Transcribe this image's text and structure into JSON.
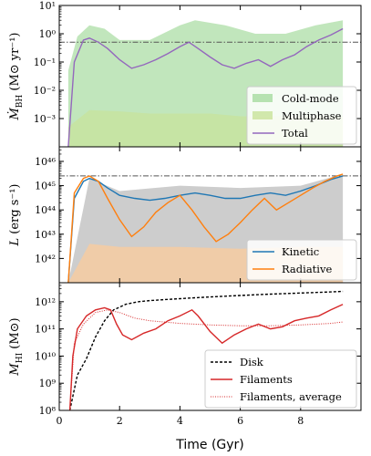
{
  "chart_data": {
    "type": "line",
    "shared_x": {
      "label": "Time (Gyr)",
      "range": [
        0,
        10
      ],
      "ticks": [
        "0",
        "2",
        "4",
        "6",
        "8"
      ]
    },
    "panels": [
      {
        "id": "accretion",
        "ylabel_main": "Ṁ",
        "ylabel_sub": "BH",
        "ylabel_unit": " (M⊙ yr⁻¹)",
        "yscale": "log",
        "ylim_exp": [
          -4,
          1
        ],
        "ytick_labels": [
          "10⁻³",
          "10⁻²",
          "10⁻¹",
          "10⁰",
          "10¹"
        ],
        "ytick_exps": [
          -3,
          -2,
          -1,
          0,
          1
        ],
        "reference_level_exp": -0.3,
        "legend_position": "lower-right",
        "series": [
          {
            "name": "Cold-mode",
            "style": "band",
            "color": "#a6dba0",
            "x": [
              0.3,
              0.6,
              1.0,
              1.5,
              2.0,
              3.0,
              4.0,
              4.5,
              5.5,
              6.5,
              7.5,
              8.5,
              9.4
            ],
            "y": [
              0.05,
              0.8,
              2.0,
              1.5,
              0.6,
              0.6,
              2.0,
              3.0,
              2.0,
              1.0,
              1.0,
              2.0,
              3.0
            ]
          },
          {
            "name": "Multiphase",
            "style": "band",
            "color": "#c8e29a",
            "x": [
              0.3,
              1.0,
              2.0,
              3.0,
              4.0,
              5.0,
              6.0,
              7.0,
              8.0,
              9.4
            ],
            "y": [
              0.0005,
              0.002,
              0.0018,
              0.0015,
              0.0015,
              0.0015,
              0.0012,
              0.0012,
              0.0013,
              0.0012
            ]
          },
          {
            "name": "Total",
            "style": "line",
            "color": "#9467bd",
            "x": [
              0.3,
              0.5,
              0.8,
              1.0,
              1.3,
              1.6,
              2.0,
              2.4,
              2.8,
              3.2,
              3.6,
              4.0,
              4.3,
              4.6,
              5.0,
              5.4,
              5.8,
              6.2,
              6.6,
              7.0,
              7.4,
              7.8,
              8.2,
              8.6,
              9.0,
              9.4
            ],
            "y": [
              0.0001,
              0.1,
              0.6,
              0.7,
              0.5,
              0.3,
              0.12,
              0.06,
              0.08,
              0.12,
              0.2,
              0.35,
              0.5,
              0.3,
              0.15,
              0.08,
              0.06,
              0.09,
              0.12,
              0.07,
              0.12,
              0.18,
              0.35,
              0.6,
              0.9,
              1.5
            ]
          }
        ]
      },
      {
        "id": "luminosity",
        "ylabel_main": "L",
        "ylabel_unit": " (erg s⁻¹)",
        "yscale": "log",
        "ylim_exp": [
          41,
          46.6
        ],
        "ytick_labels": [
          "10⁴²",
          "10⁴³",
          "10⁴⁴",
          "10⁴⁵",
          "10⁴⁶"
        ],
        "ytick_exps": [
          42,
          43,
          44,
          45,
          46
        ],
        "reference_level_exp": 45.4,
        "legend_position": "lower-right",
        "series": [
          {
            "name": "Kinetic",
            "style": "line",
            "color": "#1f77b4",
            "x": [
              0.3,
              0.5,
              0.8,
              1.0,
              1.3,
              1.6,
              2.0,
              2.5,
              3.0,
              3.5,
              4.0,
              4.5,
              5.0,
              5.5,
              6.0,
              6.5,
              7.0,
              7.5,
              8.0,
              8.5,
              9.0,
              9.4
            ],
            "y": [
              1e+41,
              3e+44,
              1.5e+45,
              2e+45,
              1.5e+45,
              8e+44,
              4e+44,
              3e+44,
              2.5e+44,
              3e+44,
              4e+44,
              5e+44,
              4e+44,
              3e+44,
              3e+44,
              4e+44,
              5e+44,
              4e+44,
              6e+44,
              1e+45,
              1.8e+45,
              2.5e+45
            ]
          },
          {
            "name": "Radiative",
            "style": "line",
            "color": "#ff7f0e",
            "x": [
              0.3,
              0.5,
              0.8,
              1.0,
              1.3,
              1.6,
              2.0,
              2.4,
              2.8,
              3.2,
              3.6,
              4.0,
              4.4,
              4.8,
              5.2,
              5.6,
              6.0,
              6.4,
              6.8,
              7.2,
              7.6,
              8.0,
              8.4,
              8.8,
              9.2,
              9.4
            ],
            "y": [
              1e+41,
              5e+44,
              2e+45,
              2.5e+45,
              1.5e+45,
              3e+44,
              4e+43,
              8e+42,
              2e+43,
              8e+43,
              2e+44,
              4e+44,
              1e+44,
              2e+43,
              5e+42,
              1e+43,
              3e+43,
              1e+44,
              3e+44,
              1e+44,
              2e+44,
              4e+44,
              8e+44,
              1.5e+45,
              2.5e+45,
              3e+45
            ]
          },
          {
            "name": "",
            "style": "band",
            "color": "#b8b8b8",
            "x": [
              0.3,
              1.0,
              2.0,
              4.0,
              6.0,
              8.0,
              9.4
            ],
            "y": [
              1e+41,
              2e+45,
              6e+44,
              1e+45,
              8e+44,
              1e+45,
              3e+45
            ]
          },
          {
            "name": "",
            "style": "band",
            "color": "#ffcc99",
            "x": [
              0.3,
              1.0,
              2.0,
              4.0,
              6.0,
              8.0,
              9.4
            ],
            "y": [
              1e+41,
              4e+42,
              3e+42,
              3e+42,
              2.5e+42,
              3e+42,
              3e+42
            ]
          }
        ]
      },
      {
        "id": "hi_mass",
        "ylabel_main": "M",
        "ylabel_sub": "HI",
        "ylabel_unit": " (M⊙)",
        "yscale": "log",
        "ylim_exp": [
          8,
          12.7
        ],
        "ytick_labels": [
          "10⁸",
          "10⁹",
          "10¹⁰",
          "10¹¹",
          "10¹²"
        ],
        "ytick_exps": [
          8,
          9,
          10,
          11,
          12
        ],
        "legend_position": "lower-right",
        "series": [
          {
            "name": "Disk",
            "style": "dashed",
            "color": "#000000",
            "x": [
              0.35,
              0.6,
              0.9,
              1.2,
              1.5,
              1.8,
              2.2,
              2.6,
              3.0,
              3.5,
              4.0,
              4.5,
              5.0,
              5.5,
              6.0,
              6.5,
              7.0,
              7.5,
              8.0,
              8.5,
              9.0,
              9.4
            ],
            "y": [
              100000000.0,
              2000000000.0,
              8000000000.0,
              50000000000.0,
              200000000000.0,
              500000000000.0,
              800000000000.0,
              1000000000000.0,
              1100000000000.0,
              1200000000000.0,
              1300000000000.0,
              1400000000000.0,
              1500000000000.0,
              1600000000000.0,
              1700000000000.0,
              1800000000000.0,
              1900000000000.0,
              2000000000000.0,
              2100000000000.0,
              2200000000000.0,
              2300000000000.0,
              2400000000000.0
            ]
          },
          {
            "name": "Filaments",
            "style": "line",
            "color": "#d62728",
            "x": [
              0.35,
              0.45,
              0.6,
              0.9,
              1.2,
              1.5,
              1.7,
              1.9,
              2.1,
              2.4,
              2.8,
              3.2,
              3.6,
              4.0,
              4.4,
              4.6,
              5.0,
              5.4,
              5.8,
              6.2,
              6.6,
              7.0,
              7.4,
              7.8,
              8.2,
              8.6,
              9.0,
              9.4
            ],
            "y": [
              100000000.0,
              10000000000.0,
              100000000000.0,
              300000000000.0,
              500000000000.0,
              600000000000.0,
              500000000000.0,
              150000000000.0,
              60000000000.0,
              40000000000.0,
              70000000000.0,
              100000000000.0,
              200000000000.0,
              300000000000.0,
              500000000000.0,
              300000000000.0,
              80000000000.0,
              30000000000.0,
              60000000000.0,
              100000000000.0,
              150000000000.0,
              100000000000.0,
              120000000000.0,
              200000000000.0,
              250000000000.0,
              300000000000.0,
              500000000000.0,
              800000000000.0
            ]
          },
          {
            "name": "Filaments, average",
            "style": "dotted",
            "color": "#d62728",
            "x": [
              0.35,
              0.5,
              0.8,
              1.2,
              1.6,
              2.0,
              2.5,
              3.0,
              4.0,
              5.0,
              6.0,
              7.0,
              8.0,
              9.0,
              9.4
            ],
            "y": [
              100000000.0,
              30000000000.0,
              150000000000.0,
              400000000000.0,
              500000000000.0,
              400000000000.0,
              250000000000.0,
              200000000000.0,
              160000000000.0,
              140000000000.0,
              130000000000.0,
              130000000000.0,
              140000000000.0,
              160000000000.0,
              180000000000.0
            ]
          }
        ]
      }
    ]
  }
}
